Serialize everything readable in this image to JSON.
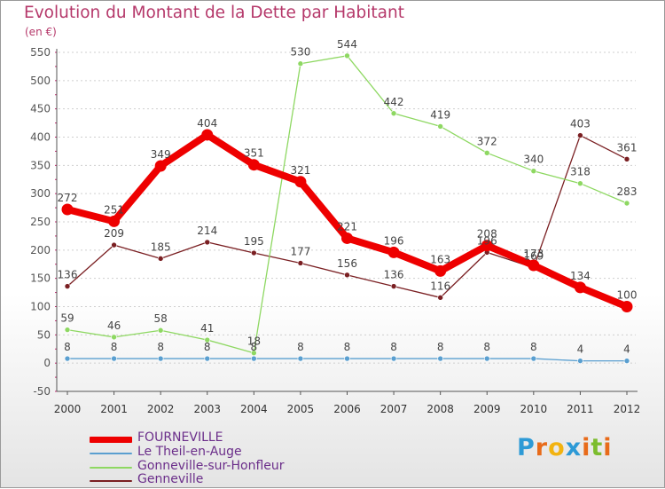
{
  "header": {
    "title": "Evolution du Montant de la Dette par Habitant",
    "unit": "(en €)"
  },
  "colors": {
    "title": "#b5386a",
    "axis": "#555555",
    "tick_marks": "#c0256c",
    "gridline": "#cfcfcf",
    "legend_text": "#6b2e8a"
  },
  "chart_data": {
    "type": "line",
    "title": "Evolution du Montant de la Dette par Habitant",
    "ylabel": "(en €)",
    "xlabel": "",
    "x": [
      "2000",
      "2001",
      "2002",
      "2003",
      "2004",
      "2005",
      "2006",
      "2007",
      "2008",
      "2009",
      "2010",
      "2011",
      "2012"
    ],
    "ylim": [
      -50,
      550
    ],
    "yticks": [
      -50,
      0,
      50,
      100,
      150,
      200,
      250,
      300,
      350,
      400,
      450,
      500,
      550
    ],
    "grid": "horizontal",
    "series": [
      {
        "name": "Genneville",
        "color": "#7a1f22",
        "values": [
          136,
          209,
          185,
          214,
          195,
          177,
          156,
          136,
          116,
          196,
          169,
          403,
          361
        ],
        "labels": [
          "136",
          "209",
          "185",
          "214",
          "195",
          "177",
          "156",
          "136",
          "116",
          "196",
          "169",
          "403",
          "361"
        ]
      },
      {
        "name": "Gonneville-sur-Honfleur",
        "color": "#8ed862",
        "values": [
          59,
          46,
          58,
          41,
          18,
          530,
          544,
          442,
          419,
          372,
          340,
          318,
          283
        ],
        "labels": [
          "59",
          "46",
          "58",
          "41",
          "18",
          "530",
          "544",
          "442",
          "419",
          "372",
          "340",
          "318",
          "283"
        ]
      },
      {
        "name": "Le Theil-en-Auge",
        "color": "#5a9fd0",
        "values": [
          8,
          8,
          8,
          8,
          8,
          8,
          8,
          8,
          8,
          8,
          8,
          4,
          4
        ],
        "labels": [
          "8",
          "8",
          "8",
          "8",
          "8",
          "8",
          "8",
          "8",
          "8",
          "8",
          "8",
          "4",
          "4"
        ]
      },
      {
        "name": "FOURNEVILLE",
        "color": "#ee0000",
        "values": [
          272,
          251,
          349,
          404,
          351,
          321,
          221,
          196,
          163,
          208,
          173,
          134,
          100
        ],
        "labels": [
          "272",
          "251",
          "349",
          "404",
          "351",
          "321",
          "221",
          "196",
          "163",
          "208",
          "173",
          "134",
          "100"
        ]
      }
    ],
    "legend": {
      "placement": "bottom-left",
      "items": [
        "FOURNEVILLE",
        "Le Theil-en-Auge",
        "Gonneville-sur-Honfleur",
        "Genneville"
      ]
    }
  },
  "logo": {
    "text": "Proxiti",
    "letters": [
      "P",
      "r",
      "o",
      "x",
      "i",
      "t",
      "i"
    ],
    "colors": [
      "#2d9ad6",
      "#e86b1a",
      "#f2b311",
      "#2d9ad6",
      "#e86b1a",
      "#7cbd2e",
      "#e86b1a"
    ]
  }
}
